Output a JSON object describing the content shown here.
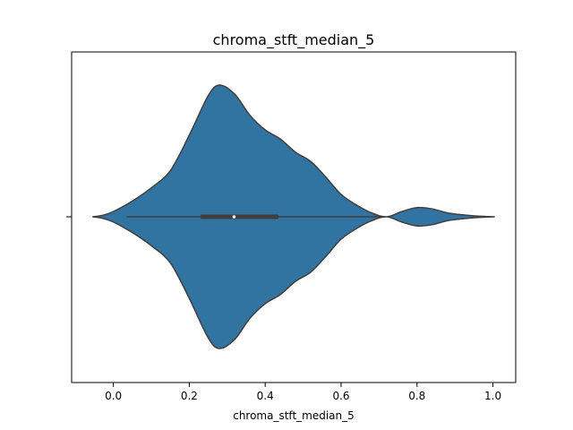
{
  "chart_data": {
    "type": "violin",
    "title": "chroma_stft_median_5",
    "xlabel": "chroma_stft_median_5",
    "ylabel": "",
    "xlim": [
      -0.11,
      1.06
    ],
    "x_ticks": [
      0.0,
      0.2,
      0.4,
      0.6,
      0.8,
      1.0
    ],
    "x_tick_labels": [
      "0.0",
      "0.2",
      "0.4",
      "0.6",
      "0.8",
      "1.0"
    ],
    "grid": false,
    "legend": "none",
    "violin_color": "#3274a1",
    "edge_color": "#3f3f3f",
    "density_profile": {
      "x": [
        -0.055,
        -0.03,
        0.0,
        0.05,
        0.1,
        0.15,
        0.2,
        0.25,
        0.28,
        0.32,
        0.36,
        0.4,
        0.44,
        0.48,
        0.52,
        0.56,
        0.6,
        0.64,
        0.68,
        0.72,
        0.76,
        0.8,
        0.84,
        0.88,
        0.92,
        0.96,
        1.005
      ],
      "relative_half_width": [
        0.0,
        0.01,
        0.04,
        0.12,
        0.22,
        0.35,
        0.62,
        0.92,
        1.0,
        0.93,
        0.77,
        0.66,
        0.59,
        0.49,
        0.42,
        0.3,
        0.17,
        0.09,
        0.03,
        0.0,
        0.04,
        0.07,
        0.06,
        0.03,
        0.015,
        0.005,
        0.0
      ]
    },
    "box": {
      "whisker_low": 0.035,
      "q1": 0.23,
      "median": 0.318,
      "q3": 0.435,
      "whisker_high": 0.715
    }
  }
}
